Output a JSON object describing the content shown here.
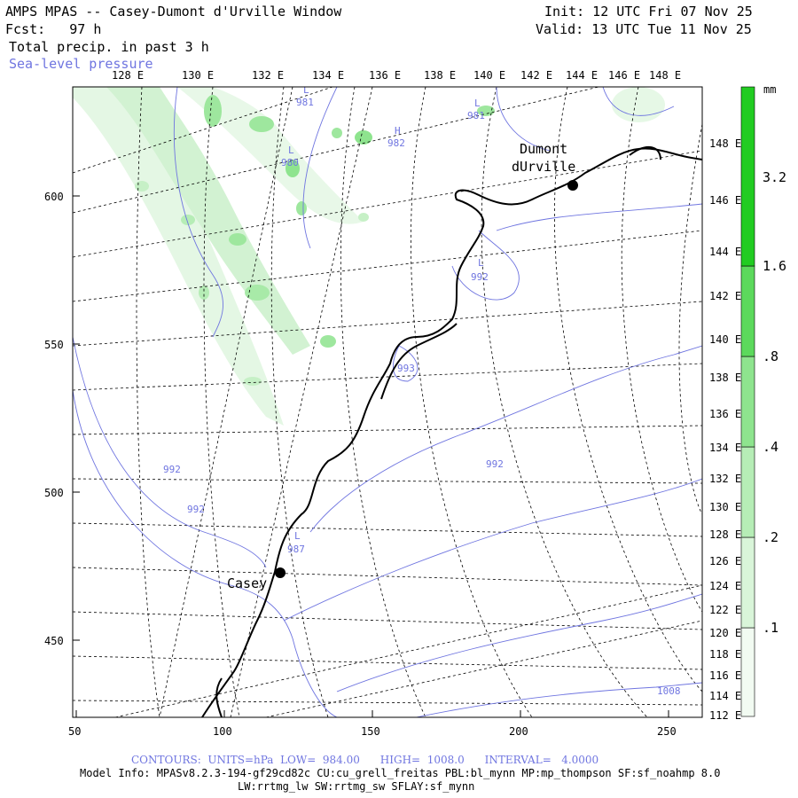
{
  "header": {
    "title": "AMPS MPAS -- Casey-Dumont d'Urville Window",
    "fcst": "Fcst:   97 h",
    "field1": "Total precip. in past 3 h",
    "field2": "Sea-level pressure",
    "init": "Init: 12 UTC Fri 07 Nov 25",
    "valid": "Valid: 13 UTC Tue 11 Nov 25"
  },
  "map": {
    "lon_top_labels": [
      "128 E",
      "130 E",
      "132 E",
      "134 E",
      "136 E",
      "138 E",
      "140 E",
      "142 E",
      "144 E",
      "146 E",
      "148 E"
    ],
    "lon_right_labels": [
      "148 E",
      "146 E",
      "144 E",
      "142 E",
      "140 E",
      "138 E",
      "136 E",
      "134 E",
      "132 E",
      "130 E",
      "128 E",
      "126 E",
      "124 E",
      "122 E",
      "120 E",
      "118 E",
      "116 E",
      "114 E",
      "112 E"
    ],
    "y_axis_labels": [
      "600",
      "550",
      "500",
      "450"
    ],
    "x_axis_labels": [
      "50",
      "100",
      "150",
      "200",
      "250"
    ],
    "stations": [
      {
        "name_line1": "Dumont",
        "name_line2": "dUrville"
      },
      {
        "name_line1": "Casey",
        "name_line2": ""
      }
    ],
    "pressure_labels": [
      {
        "sym": "L",
        "value": "981"
      },
      {
        "sym": "L",
        "value": "981"
      },
      {
        "sym": "H",
        "value": "982"
      },
      {
        "sym": "L",
        "value": "980"
      },
      {
        "sym": "L",
        "value": "992"
      },
      {
        "sym": "",
        "value": "993"
      },
      {
        "sym": "",
        "value": "992"
      },
      {
        "sym": "",
        "value": "992"
      },
      {
        "sym": "",
        "value": "992"
      },
      {
        "sym": "L",
        "value": "987"
      },
      {
        "sym": "",
        "value": "1008"
      }
    ]
  },
  "colorbar": {
    "unit": "mm",
    "levels": [
      ".1",
      ".2",
      ".4",
      ".8",
      "1.6",
      "3.2"
    ],
    "colors": [
      "#f2fbf2",
      "#d9f5d9",
      "#b6edb6",
      "#8ee48e",
      "#5cd95c",
      "#22cc22"
    ]
  },
  "footer": {
    "contours": "CONTOURS:  UNITS=hPa  LOW=  984.00      HIGH=  1008.0      INTERVAL=   4.0000",
    "model_info": "Model Info: MPASv8.2.3-194-gf29cd82c CU:cu_grell_freitas PBL:bl_mynn MP:mp_thompson SF:sf_noahmp 8.0",
    "model_info2": "LW:rrtmg_lw SW:rrtmg_sw SFLAY:sf_mynn"
  }
}
